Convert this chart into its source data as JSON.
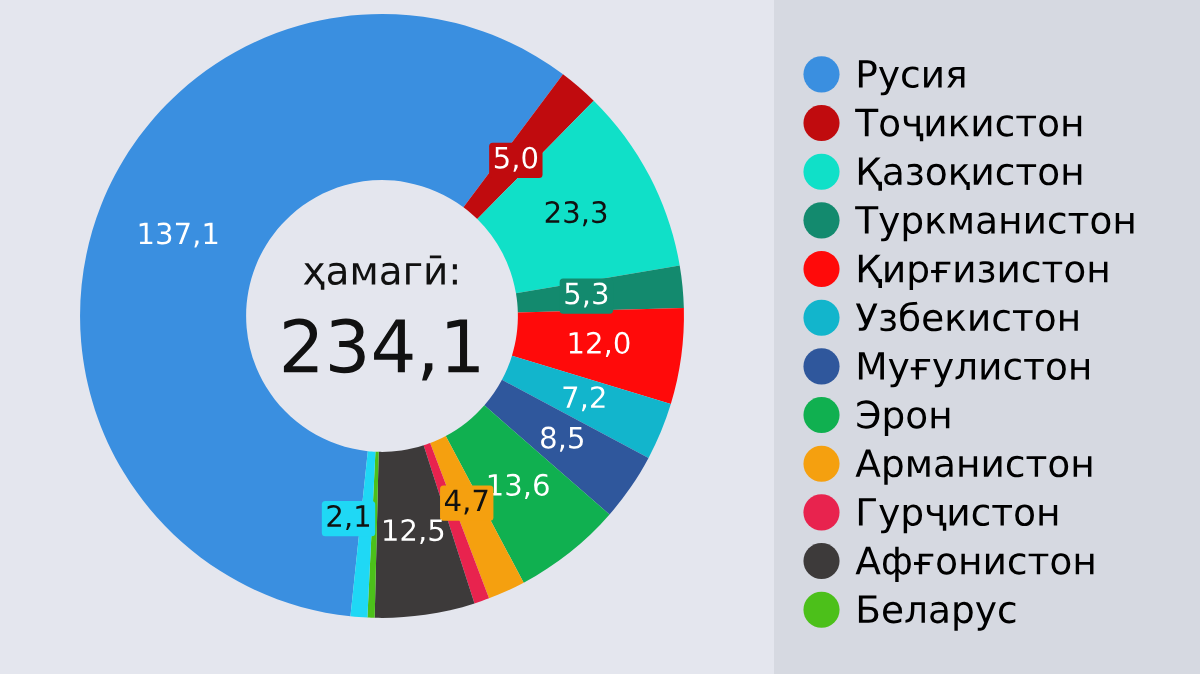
{
  "chart_data": {
    "type": "donut",
    "categories": [
      "Русия",
      "Тоҷикистон",
      "Қазоқистон",
      "Туркманистон",
      "Қирғизистон",
      "Узбекистон",
      "Муғулистон",
      "Эрон",
      "Арманистон",
      "Гурҷистон",
      "Афғонистон",
      "Беларус",
      null
    ],
    "values": [
      137.1,
      5.0,
      23.3,
      5.3,
      12.0,
      7.2,
      8.5,
      13.6,
      4.7,
      1.9,
      12.5,
      0.9,
      2.1
    ],
    "colors": [
      "#3a8fe0",
      "#c00b0e",
      "#10e0c8",
      "#138a6e",
      "#ff0a0a",
      "#12b5cc",
      "#2f579c",
      "#10b050",
      "#f5a00f",
      "#e8234e",
      "#3d3a3a",
      "#4cc01a",
      "#1fd8f5"
    ],
    "value_labels": [
      "137,1",
      "5,0",
      "23,3",
      "5,3",
      "12,0",
      "7,2",
      "8,5",
      "13,6",
      "4,7",
      null,
      "12,5",
      null,
      "2,1"
    ],
    "annotations": [
      "ҳамагӣ:",
      "234,1"
    ],
    "legend": "right"
  }
}
